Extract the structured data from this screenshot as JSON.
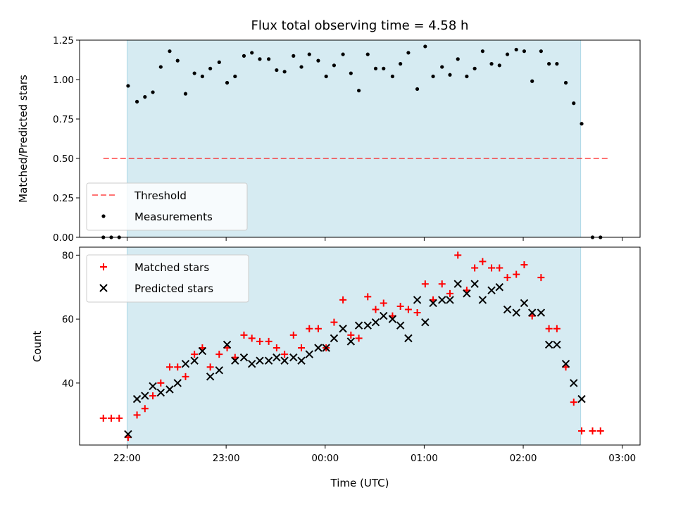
{
  "colors": {
    "band": "#add8e6",
    "threshold": "#ff0000",
    "measurement": "#000000",
    "matched": "#ff0000",
    "predicted": "#000000"
  },
  "chart_data": [
    {
      "type": "scatter",
      "title": "Flux total observing time = 4.58 h",
      "xlabel": "",
      "ylabel": "Matched/Predicted stars",
      "ylim": [
        0,
        1.25
      ],
      "yticks": [
        "0.00",
        "0.25",
        "0.50",
        "0.75",
        "1.00",
        "1.25"
      ],
      "x_unit": "hours after 22:00 UTC",
      "xlim": [
        -0.48,
        5.18
      ],
      "highlight_span": [
        0.0,
        4.58
      ],
      "threshold": {
        "label": "Threshold",
        "value": 0.5,
        "x_range": [
          -0.24,
          4.86
        ],
        "style": "dashed"
      },
      "legend": [
        "Threshold",
        "Measurements"
      ],
      "legend_position": "lower-left",
      "series": [
        {
          "name": "Measurements",
          "points": [
            [
              -0.24,
              0.0
            ],
            [
              -0.16,
              0.0
            ],
            [
              -0.08,
              0.0
            ],
            [
              0.01,
              0.96
            ],
            [
              0.1,
              0.86
            ],
            [
              0.18,
              0.89
            ],
            [
              0.26,
              0.92
            ],
            [
              0.34,
              1.08
            ],
            [
              0.43,
              1.18
            ],
            [
              0.51,
              1.12
            ],
            [
              0.59,
              0.91
            ],
            [
              0.68,
              1.04
            ],
            [
              0.76,
              1.02
            ],
            [
              0.84,
              1.07
            ],
            [
              0.93,
              1.11
            ],
            [
              1.01,
              0.98
            ],
            [
              1.09,
              1.02
            ],
            [
              1.18,
              1.15
            ],
            [
              1.26,
              1.17
            ],
            [
              1.34,
              1.13
            ],
            [
              1.43,
              1.13
            ],
            [
              1.51,
              1.06
            ],
            [
              1.59,
              1.05
            ],
            [
              1.68,
              1.15
            ],
            [
              1.76,
              1.08
            ],
            [
              1.84,
              1.16
            ],
            [
              1.93,
              1.12
            ],
            [
              2.01,
              1.02
            ],
            [
              2.09,
              1.09
            ],
            [
              2.18,
              1.16
            ],
            [
              2.26,
              1.04
            ],
            [
              2.34,
              0.93
            ],
            [
              2.43,
              1.16
            ],
            [
              2.51,
              1.07
            ],
            [
              2.59,
              1.07
            ],
            [
              2.68,
              1.02
            ],
            [
              2.76,
              1.1
            ],
            [
              2.84,
              1.17
            ],
            [
              2.93,
              0.94
            ],
            [
              3.01,
              1.21
            ],
            [
              3.09,
              1.02
            ],
            [
              3.18,
              1.08
            ],
            [
              3.26,
              1.03
            ],
            [
              3.34,
              1.13
            ],
            [
              3.43,
              1.02
            ],
            [
              3.51,
              1.07
            ],
            [
              3.59,
              1.18
            ],
            [
              3.68,
              1.1
            ],
            [
              3.76,
              1.09
            ],
            [
              3.84,
              1.16
            ],
            [
              3.93,
              1.19
            ],
            [
              4.01,
              1.18
            ],
            [
              4.09,
              0.99
            ],
            [
              4.18,
              1.18
            ],
            [
              4.26,
              1.1
            ],
            [
              4.34,
              1.1
            ],
            [
              4.43,
              0.98
            ],
            [
              4.51,
              0.85
            ],
            [
              4.59,
              0.72
            ],
            [
              4.7,
              0.0
            ],
            [
              4.78,
              0.0
            ]
          ]
        }
      ]
    },
    {
      "type": "scatter",
      "title": "",
      "xlabel": "Time (UTC)",
      "ylabel": "Count",
      "ylim": [
        20.6,
        82.5
      ],
      "yticks": [
        "40",
        "60",
        "80"
      ],
      "x_unit": "hours after 22:00 UTC",
      "xlim": [
        -0.48,
        5.18
      ],
      "xticks": [
        "22:00",
        "23:00",
        "00:00",
        "01:00",
        "02:00",
        "03:00"
      ],
      "highlight_span": [
        0.0,
        4.58
      ],
      "legend": [
        "Matched stars",
        "Predicted stars"
      ],
      "legend_position": "upper-left",
      "series": [
        {
          "name": "Matched stars",
          "marker": "plus",
          "points": [
            [
              -0.24,
              29
            ],
            [
              -0.16,
              29
            ],
            [
              -0.08,
              29
            ],
            [
              0.01,
              23
            ],
            [
              0.1,
              30
            ],
            [
              0.18,
              32
            ],
            [
              0.26,
              36
            ],
            [
              0.34,
              40
            ],
            [
              0.43,
              45
            ],
            [
              0.51,
              45
            ],
            [
              0.59,
              42
            ],
            [
              0.68,
              49
            ],
            [
              0.76,
              51
            ],
            [
              0.84,
              45
            ],
            [
              0.93,
              49
            ],
            [
              1.01,
              51
            ],
            [
              1.09,
              48
            ],
            [
              1.18,
              55
            ],
            [
              1.26,
              54
            ],
            [
              1.34,
              53
            ],
            [
              1.43,
              53
            ],
            [
              1.51,
              51
            ],
            [
              1.59,
              49
            ],
            [
              1.68,
              55
            ],
            [
              1.76,
              51
            ],
            [
              1.84,
              57
            ],
            [
              1.93,
              57
            ],
            [
              2.01,
              51
            ],
            [
              2.09,
              59
            ],
            [
              2.18,
              66
            ],
            [
              2.26,
              55
            ],
            [
              2.34,
              54
            ],
            [
              2.43,
              67
            ],
            [
              2.51,
              63
            ],
            [
              2.59,
              65
            ],
            [
              2.68,
              61
            ],
            [
              2.76,
              64
            ],
            [
              2.84,
              63
            ],
            [
              2.93,
              62
            ],
            [
              3.01,
              71
            ],
            [
              3.09,
              66
            ],
            [
              3.18,
              71
            ],
            [
              3.26,
              68
            ],
            [
              3.34,
              80
            ],
            [
              3.43,
              69
            ],
            [
              3.51,
              76
            ],
            [
              3.59,
              78
            ],
            [
              3.68,
              76
            ],
            [
              3.76,
              76
            ],
            [
              3.84,
              73
            ],
            [
              3.93,
              74
            ],
            [
              4.01,
              77
            ],
            [
              4.09,
              61
            ],
            [
              4.18,
              73
            ],
            [
              4.26,
              57
            ],
            [
              4.34,
              57
            ],
            [
              4.43,
              45
            ],
            [
              4.51,
              34
            ],
            [
              4.59,
              25
            ],
            [
              4.7,
              25
            ],
            [
              4.78,
              25
            ]
          ]
        },
        {
          "name": "Predicted stars",
          "marker": "x",
          "points": [
            [
              0.01,
              24
            ],
            [
              0.1,
              35
            ],
            [
              0.18,
              36
            ],
            [
              0.26,
              39
            ],
            [
              0.34,
              37
            ],
            [
              0.43,
              38
            ],
            [
              0.51,
              40
            ],
            [
              0.59,
              46
            ],
            [
              0.68,
              47
            ],
            [
              0.76,
              50
            ],
            [
              0.84,
              42
            ],
            [
              0.93,
              44
            ],
            [
              1.01,
              52
            ],
            [
              1.09,
              47
            ],
            [
              1.18,
              48
            ],
            [
              1.26,
              46
            ],
            [
              1.34,
              47
            ],
            [
              1.43,
              47
            ],
            [
              1.51,
              48
            ],
            [
              1.59,
              47
            ],
            [
              1.68,
              48
            ],
            [
              1.76,
              47
            ],
            [
              1.84,
              49
            ],
            [
              1.93,
              51
            ],
            [
              2.01,
              51
            ],
            [
              2.09,
              54
            ],
            [
              2.18,
              57
            ],
            [
              2.26,
              53
            ],
            [
              2.34,
              58
            ],
            [
              2.43,
              58
            ],
            [
              2.51,
              59
            ],
            [
              2.59,
              61
            ],
            [
              2.68,
              60
            ],
            [
              2.76,
              58
            ],
            [
              2.84,
              54
            ],
            [
              2.93,
              66
            ],
            [
              3.01,
              59
            ],
            [
              3.09,
              65
            ],
            [
              3.18,
              66
            ],
            [
              3.26,
              66
            ],
            [
              3.34,
              71
            ],
            [
              3.43,
              68
            ],
            [
              3.51,
              71
            ],
            [
              3.59,
              66
            ],
            [
              3.68,
              69
            ],
            [
              3.76,
              70
            ],
            [
              3.84,
              63
            ],
            [
              3.93,
              62
            ],
            [
              4.01,
              65
            ],
            [
              4.09,
              62
            ],
            [
              4.18,
              62
            ],
            [
              4.26,
              52
            ],
            [
              4.34,
              52
            ],
            [
              4.43,
              46
            ],
            [
              4.51,
              40
            ],
            [
              4.59,
              35
            ]
          ]
        }
      ]
    }
  ]
}
